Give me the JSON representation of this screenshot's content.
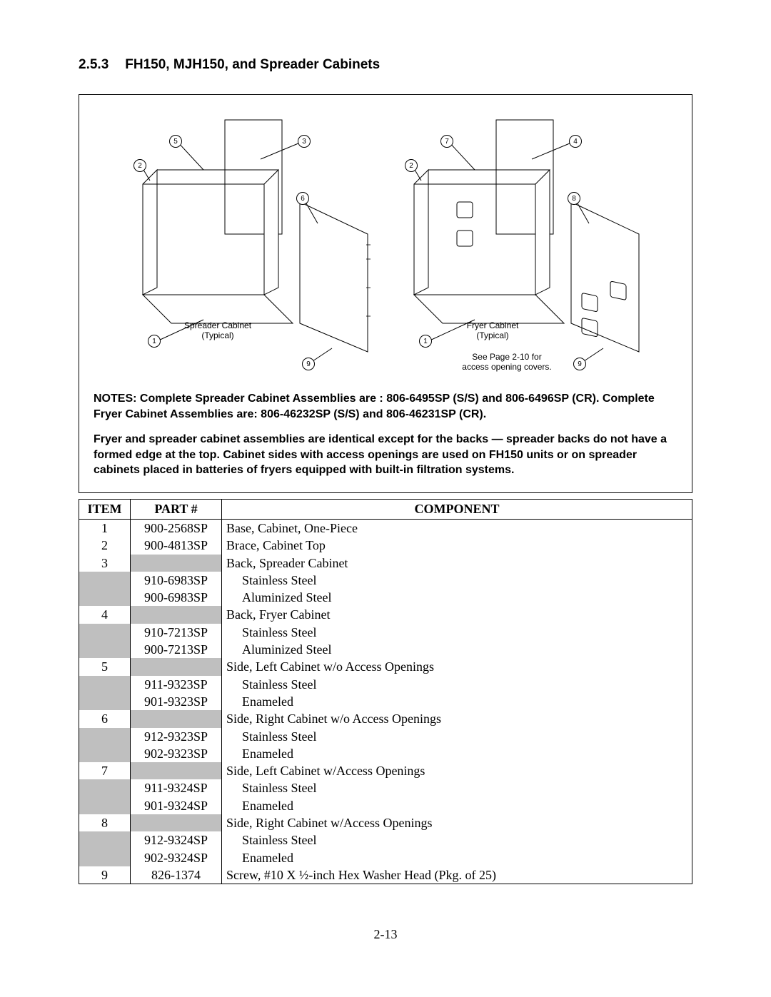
{
  "heading": {
    "number": "2.5.3",
    "title": "FH150,  MJH150, and Spreader Cabinets"
  },
  "diagram": {
    "left": {
      "caption_l1": "Spreader Cabinet",
      "caption_l2": "(Typical)",
      "callouts": {
        "c1": "1",
        "c2": "2",
        "c3": "3",
        "c5": "5",
        "c6": "6",
        "c9": "9"
      }
    },
    "right": {
      "caption_l1": "Fryer Cabinet",
      "caption_l2": "(Typical)",
      "note_l1": "See Page 2-10 for",
      "note_l2": "access opening covers.",
      "callouts": {
        "c1": "1",
        "c2": "2",
        "c4": "4",
        "c7": "7",
        "c8": "8",
        "c9": "9"
      }
    }
  },
  "notes": {
    "p1": "NOTES:  Complete Spreader Cabinet Assemblies are :  806-6495SP (S/S) and 806-6496SP (CR). Complete Fryer Cabinet Assemblies are:  806-46232SP (S/S) and 806-46231SP (CR).",
    "p2": "Fryer and spreader cabinet assemblies are identical except for the backs — spreader backs do not have a formed edge at the top.  Cabinet sides with access openings are used on FH150 units or on spreader cabinets placed in batteries of fryers equipped with built-in filtration systems."
  },
  "table": {
    "headers": {
      "item": "ITEM",
      "part": "PART #",
      "component": "COMPONENT"
    },
    "rows": [
      {
        "item": "1",
        "part": "900-2568SP",
        "component": "Base, Cabinet, One-Piece"
      },
      {
        "item": "2",
        "part": "900-4813SP",
        "component": "Brace, Cabinet Top"
      },
      {
        "item": "3",
        "part": "",
        "shaded_part": true,
        "component": "Back, Spreader Cabinet"
      },
      {
        "item": "",
        "shaded_item": true,
        "part": "910-6983SP",
        "component": "Stainless Steel",
        "indent": true
      },
      {
        "item": "",
        "shaded_item": true,
        "part": "900-6983SP",
        "component": "Aluminized Steel",
        "indent": true
      },
      {
        "item": "4",
        "part": "",
        "shaded_part": true,
        "component": "Back, Fryer Cabinet"
      },
      {
        "item": "",
        "shaded_item": true,
        "part": "910-7213SP",
        "component": "Stainless Steel",
        "indent": true
      },
      {
        "item": "",
        "shaded_item": true,
        "part": "900-7213SP",
        "component": "Aluminized Steel",
        "indent": true
      },
      {
        "item": "5",
        "part": "",
        "shaded_part": true,
        "component": "Side, Left Cabinet w/o Access Openings"
      },
      {
        "item": "",
        "shaded_item": true,
        "part": "911-9323SP",
        "component": "Stainless Steel",
        "indent": true
      },
      {
        "item": "",
        "shaded_item": true,
        "part": "901-9323SP",
        "component": "Enameled",
        "indent": true
      },
      {
        "item": "6",
        "part": "",
        "shaded_part": true,
        "component": "Side, Right Cabinet w/o Access Openings"
      },
      {
        "item": "",
        "shaded_item": true,
        "part": "912-9323SP",
        "component": "Stainless Steel",
        "indent": true
      },
      {
        "item": "",
        "shaded_item": true,
        "part": "902-9323SP",
        "component": "Enameled",
        "indent": true
      },
      {
        "item": "7",
        "part": "",
        "shaded_part": true,
        "component": "Side, Left Cabinet w/Access Openings"
      },
      {
        "item": "",
        "shaded_item": true,
        "part": "911-9324SP",
        "component": "Stainless Steel",
        "indent": true
      },
      {
        "item": "",
        "shaded_item": true,
        "part": "901-9324SP",
        "component": "Enameled",
        "indent": true
      },
      {
        "item": "8",
        "part": "",
        "shaded_part": true,
        "component": "Side, Right Cabinet w/Access Openings"
      },
      {
        "item": "",
        "shaded_item": true,
        "part": "912-9324SP",
        "component": "Stainless Steel",
        "indent": true
      },
      {
        "item": "",
        "shaded_item": true,
        "part": "902-9324SP",
        "component": "Enameled",
        "indent": true
      },
      {
        "item": "9",
        "part": "826-1374",
        "component": "Screw, #10 X ½-inch Hex Washer Head (Pkg. of 25)"
      }
    ]
  },
  "page_number": "2-13",
  "colors": {
    "shade": "#bfbfbf",
    "border": "#000000",
    "bg": "#ffffff"
  }
}
